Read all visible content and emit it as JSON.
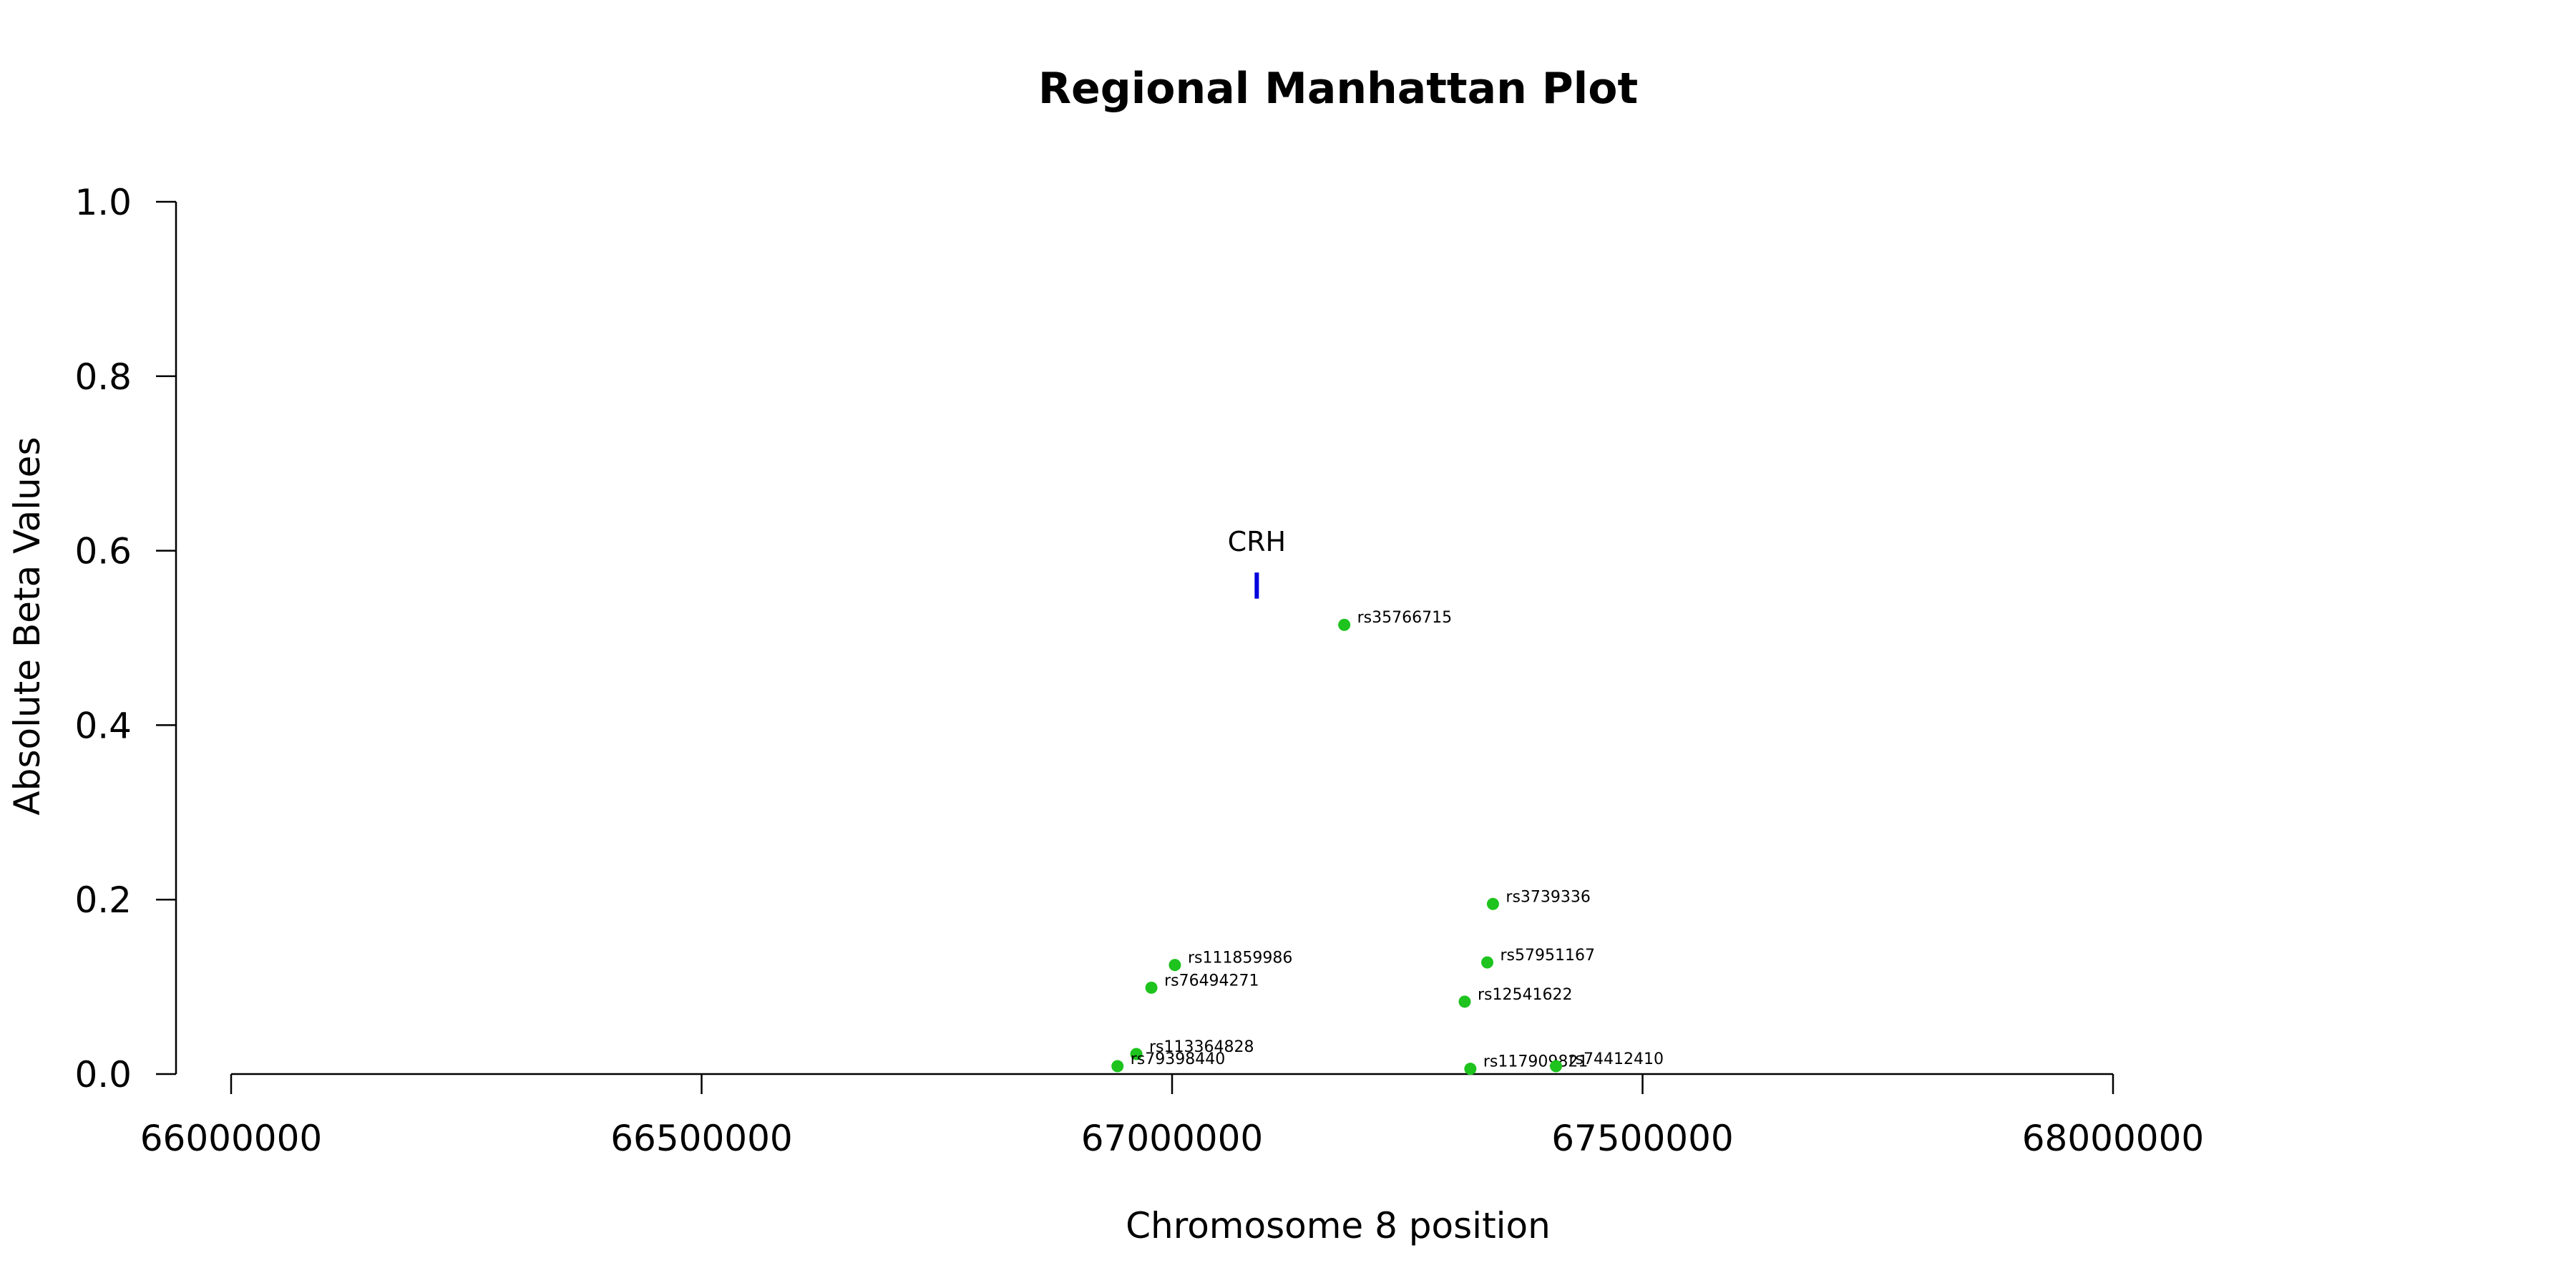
{
  "chart_data": {
    "type": "scatter",
    "title": "Regional Manhattan Plot",
    "xlabel": "Chromosome 8 position",
    "ylabel": "Absolute Beta Values",
    "xlim": [
      66000000,
      68000000
    ],
    "ylim": [
      0,
      1.0
    ],
    "x_ticks": [
      66000000,
      66500000,
      67000000,
      67500000,
      68000000
    ],
    "y_ticks": [
      "0.0",
      "0.2",
      "0.4",
      "0.6",
      "0.8",
      "1.0"
    ],
    "grid": false,
    "point_color": "#1ec31e",
    "gene_color": "#0000dd",
    "points": [
      {
        "label": "rs35766715",
        "x": 67183000,
        "y": 0.515
      },
      {
        "label": "rs3739336",
        "x": 67341000,
        "y": 0.195
      },
      {
        "label": "rs57951167",
        "x": 67335000,
        "y": 0.128
      },
      {
        "label": "rs111859986",
        "x": 67003000,
        "y": 0.125
      },
      {
        "label": "rs76494271",
        "x": 66978000,
        "y": 0.099
      },
      {
        "label": "rs12541622",
        "x": 67311000,
        "y": 0.083
      },
      {
        "label": "rs113364828",
        "x": 66962000,
        "y": 0.023
      },
      {
        "label": "rs79398440",
        "x": 66942000,
        "y": 0.009
      },
      {
        "label": "rs117909821",
        "x": 67317000,
        "y": 0.006
      },
      {
        "label": "rs74412410",
        "x": 67408000,
        "y": 0.009
      }
    ],
    "genes": [
      {
        "name": "CRH",
        "x": 67090000,
        "y_low": 0.545,
        "y_high": 0.575
      }
    ]
  }
}
